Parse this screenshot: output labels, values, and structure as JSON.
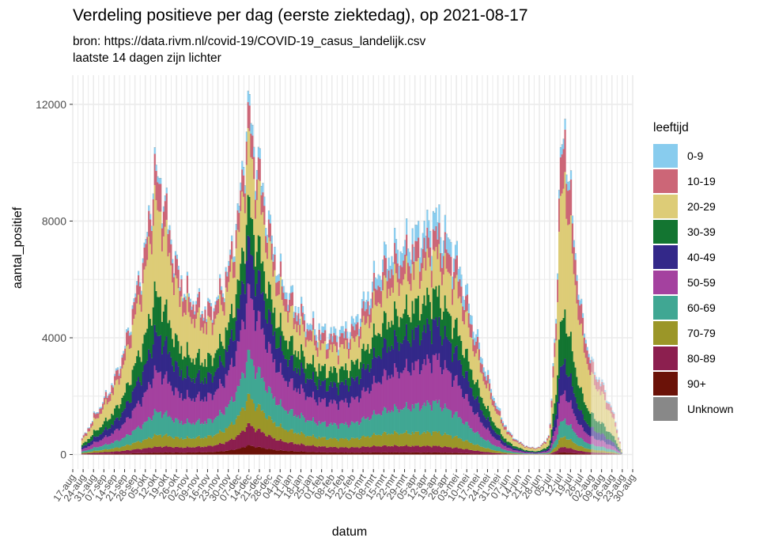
{
  "chart_data": {
    "type": "area",
    "title": "Verdeling positieve per dag (eerste ziektedag), op 2021-08-17",
    "subtitle_line1": "bron: https://data.rivm.nl/covid-19/COVID-19_casus_landelijk.csv",
    "subtitle_line2": "laatste 14 dagen zijn lichter",
    "xlabel": "datum",
    "ylabel": "aantal_positief",
    "ylim": [
      -500,
      13000
    ],
    "yticks": [
      0,
      4000,
      8000,
      12000
    ],
    "ytick_labels": [
      "0",
      "4000",
      "8000",
      "12000"
    ],
    "xtick_labels": [
      "17-aug",
      "24-aug",
      "31-aug",
      "07-sep",
      "14-sep",
      "21-sep",
      "28-sep",
      "05-okt",
      "12-okt",
      "19-okt",
      "26-okt",
      "02-nov",
      "09-nov",
      "16-nov",
      "23-nov",
      "30-nov",
      "07-dec",
      "14-dec",
      "21-dec",
      "28-dec",
      "04-jan",
      "11-jan",
      "18-jan",
      "25-jan",
      "01-feb",
      "08-feb",
      "15-feb",
      "22-feb",
      "01-mrt",
      "08-mrt",
      "15-mrt",
      "22-mrt",
      "29-mrt",
      "05-apr",
      "12-apr",
      "19-apr",
      "26-apr",
      "03-mei",
      "10-mei",
      "17-mei",
      "24-mei",
      "31-mei",
      "07-jun",
      "14-jun",
      "21-jun",
      "28-jun",
      "05-jul",
      "12-jul",
      "19-jul",
      "26-jul",
      "02-aug",
      "09-aug",
      "16-aug",
      "23-aug",
      "30-aug"
    ],
    "x_range_weeks": [
      0,
      54
    ],
    "lighter_from_week": 50,
    "legend_title": "leeftijd",
    "legend_position": "right",
    "series": [
      {
        "name": "90+",
        "color": "#6B1208",
        "weights": [
          0.014,
          0.006,
          0.018,
          0.026,
          0.01,
          0.008,
          0.006
        ]
      },
      {
        "name": "80-89",
        "color": "#8C1F4F",
        "weights": [
          0.036,
          0.02,
          0.044,
          0.06,
          0.032,
          0.026,
          0.016
        ]
      },
      {
        "name": "70-79",
        "color": "#9B9628",
        "weights": [
          0.048,
          0.04,
          0.07,
          0.08,
          0.06,
          0.056,
          0.03
        ]
      },
      {
        "name": "60-69",
        "color": "#40A793",
        "weights": [
          0.08,
          0.08,
          0.11,
          0.12,
          0.11,
          0.12,
          0.05
        ]
      },
      {
        "name": "50-59",
        "color": "#A4419F",
        "weights": [
          0.12,
          0.14,
          0.17,
          0.18,
          0.17,
          0.18,
          0.08
        ]
      },
      {
        "name": "40-49",
        "color": "#332889",
        "weights": [
          0.12,
          0.13,
          0.13,
          0.13,
          0.14,
          0.14,
          0.09
        ]
      },
      {
        "name": "30-39",
        "color": "#137531",
        "weights": [
          0.15,
          0.14,
          0.12,
          0.11,
          0.12,
          0.12,
          0.14
        ]
      },
      {
        "name": "20-29",
        "color": "#DDCC77",
        "weights": [
          0.26,
          0.31,
          0.22,
          0.18,
          0.16,
          0.15,
          0.39
        ]
      },
      {
        "name": "10-19",
        "color": "#CC6677",
        "weights": [
          0.12,
          0.1,
          0.09,
          0.07,
          0.09,
          0.08,
          0.12
        ]
      },
      {
        "name": "0-9",
        "color": "#88CCEE",
        "weights": [
          0.03,
          0.02,
          0.02,
          0.03,
          0.06,
          0.07,
          0.03
        ]
      },
      {
        "name": "Unknown",
        "color": "#888888",
        "weights": [
          0.001,
          0.001,
          0.001,
          0.001,
          0.001,
          0.001,
          0.001
        ]
      }
    ],
    "weight_anchor_weeks": [
      0,
      8,
      14,
      17,
      30,
      35,
      47
    ],
    "total_by_week": [
      [
        0,
        0
      ],
      [
        1.3,
        800
      ],
      [
        2,
        1300
      ],
      [
        3,
        1900
      ],
      [
        4,
        2600
      ],
      [
        5,
        3700
      ],
      [
        6,
        5500
      ],
      [
        7,
        7200
      ],
      [
        7.9,
        9900
      ],
      [
        8.6,
        9300
      ],
      [
        9,
        8500
      ],
      [
        10,
        6500
      ],
      [
        11,
        5600
      ],
      [
        12,
        5300
      ],
      [
        13,
        5000
      ],
      [
        14,
        5500
      ],
      [
        15,
        6500
      ],
      [
        16,
        8500
      ],
      [
        17,
        12300
      ],
      [
        17.4,
        10800
      ],
      [
        18,
        10000
      ],
      [
        19,
        7800
      ],
      [
        20,
        6200
      ],
      [
        21,
        5500
      ],
      [
        22,
        5000
      ],
      [
        23,
        4500
      ],
      [
        24,
        4300
      ],
      [
        25,
        4200
      ],
      [
        26,
        4300
      ],
      [
        27,
        4500
      ],
      [
        28,
        5200
      ],
      [
        29,
        6000
      ],
      [
        30,
        6800
      ],
      [
        31,
        7100
      ],
      [
        32,
        7300
      ],
      [
        33,
        7600
      ],
      [
        34,
        7800
      ],
      [
        35,
        8300
      ],
      [
        36,
        7600
      ],
      [
        37,
        6900
      ],
      [
        38,
        5500
      ],
      [
        39,
        4000
      ],
      [
        40,
        2700
      ],
      [
        41,
        1600
      ],
      [
        42,
        800
      ],
      [
        43,
        450
      ],
      [
        44,
        250
      ],
      [
        45,
        250
      ],
      [
        46,
        700
      ],
      [
        46.6,
        5000
      ],
      [
        47,
        9800
      ],
      [
        47.4,
        11700
      ],
      [
        48,
        9000
      ],
      [
        49,
        5000
      ],
      [
        50,
        3200
      ],
      [
        51,
        2500
      ],
      [
        52,
        1600
      ],
      [
        52.5,
        900
      ],
      [
        53,
        0
      ],
      [
        54,
        0
      ]
    ],
    "colors": {
      "background": "#FFFFFF",
      "panel": "#FFFFFF",
      "grid": "#EBEBEB",
      "axis_text": "#4D4D4D"
    }
  }
}
